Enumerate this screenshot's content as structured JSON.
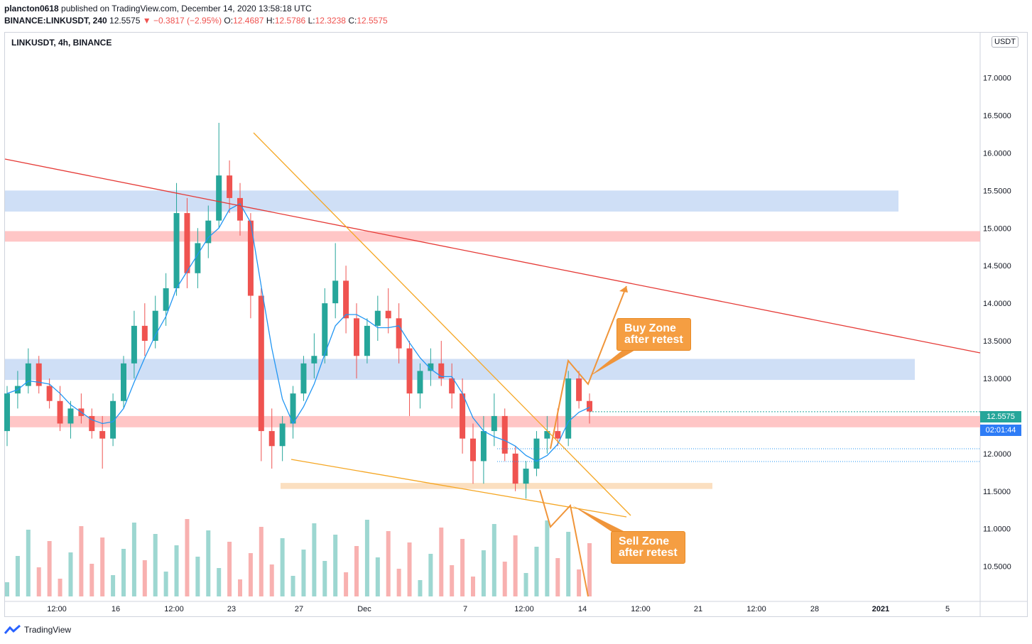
{
  "header": {
    "author": "plancton0618",
    "published": "published on TradingView.com, December 14, 2020 13:58:18 UTC",
    "symbol_full": "BINANCE:LINKUSDT, 240",
    "last": "12.5575",
    "change": "−0.3817 (−2.95%)",
    "o_label": "O:",
    "o_val": "12.4687",
    "h_label": "H:",
    "h_val": "12.5786",
    "l_label": "L:",
    "l_val": "12.3238",
    "c_label": "C:",
    "c_val": "12.5575"
  },
  "symbol_label": "LINKUSDT, 4h, BINANCE",
  "unit": "USDT",
  "price_tag": {
    "price": "12.5575",
    "countdown": "02:01:44"
  },
  "callouts": {
    "buy": [
      "Buy Zone",
      "after retest"
    ],
    "sell": [
      "Sell Zone",
      "after retest"
    ]
  },
  "footer": {
    "brand": "TradingView"
  },
  "colors": {
    "up": "#26a69a",
    "down": "#ef5350",
    "ma": "#2196f3",
    "blue_zone": "#c7d9f5",
    "red_zone": "#ffbcbc",
    "orange_zone": "#fad9b5",
    "trend_red": "#e53935",
    "trend_orange": "#f5a623",
    "arrow": "#f0953a"
  },
  "chart_data": {
    "type": "candlestick",
    "title": "LINKUSDT, 4h, BINANCE",
    "ylim": [
      10.1,
      17.6
    ],
    "y_ticks": [
      "10.5000",
      "11.0000",
      "11.5000",
      "12.0000",
      "12.5000",
      "13.0000",
      "13.5000",
      "14.0000",
      "14.5000",
      "15.0000",
      "15.5000",
      "16.0000",
      "16.5000",
      "17.0000"
    ],
    "x_ticks": [
      "12:00",
      "16",
      "12:00",
      "23",
      "27",
      "Dec",
      "7",
      "12:00",
      "14",
      "12:00",
      "21",
      "12:00",
      "28",
      "2021",
      "5"
    ],
    "zones": [
      {
        "color": "blue",
        "from": 15.22,
        "to": 15.5
      },
      {
        "color": "red",
        "from": 14.82,
        "to": 14.96
      },
      {
        "color": "blue",
        "from": 12.98,
        "to": 13.26
      },
      {
        "color": "red",
        "from": 12.35,
        "to": 12.5
      },
      {
        "color": "orange",
        "from": 11.53,
        "to": 11.61
      }
    ],
    "candles_approx": [
      [
        12.3,
        12.9,
        12.1,
        12.8
      ],
      [
        12.8,
        13.1,
        12.6,
        12.9
      ],
      [
        12.9,
        13.4,
        12.8,
        13.2
      ],
      [
        13.2,
        13.3,
        12.8,
        12.9
      ],
      [
        12.9,
        13.0,
        12.6,
        12.7
      ],
      [
        12.7,
        12.9,
        12.3,
        12.4
      ],
      [
        12.4,
        12.7,
        12.2,
        12.6
      ],
      [
        12.6,
        12.8,
        12.4,
        12.5
      ],
      [
        12.5,
        12.6,
        12.2,
        12.3
      ],
      [
        12.3,
        12.5,
        11.8,
        12.2
      ],
      [
        12.2,
        12.8,
        12.1,
        12.7
      ],
      [
        12.7,
        13.3,
        12.6,
        13.2
      ],
      [
        13.2,
        13.9,
        13.0,
        13.7
      ],
      [
        13.7,
        14.0,
        13.3,
        13.5
      ],
      [
        13.5,
        14.1,
        13.4,
        13.9
      ],
      [
        13.9,
        14.4,
        13.7,
        14.2
      ],
      [
        14.2,
        15.6,
        14.1,
        15.2
      ],
      [
        15.2,
        15.4,
        14.2,
        14.4
      ],
      [
        14.4,
        15.0,
        14.2,
        14.8
      ],
      [
        14.8,
        15.3,
        14.6,
        15.1
      ],
      [
        15.1,
        16.4,
        15.0,
        15.7
      ],
      [
        15.7,
        15.9,
        15.2,
        15.4
      ],
      [
        15.4,
        15.6,
        14.9,
        15.1
      ],
      [
        15.1,
        15.2,
        13.8,
        14.1
      ],
      [
        14.1,
        14.2,
        11.9,
        12.3
      ],
      [
        12.3,
        12.6,
        11.8,
        12.1
      ],
      [
        12.1,
        12.5,
        11.9,
        12.4
      ],
      [
        12.4,
        12.9,
        12.2,
        12.8
      ],
      [
        12.8,
        13.3,
        12.7,
        13.2
      ],
      [
        13.2,
        13.6,
        13.0,
        13.3
      ],
      [
        13.3,
        14.2,
        13.2,
        14.0
      ],
      [
        14.0,
        14.8,
        13.8,
        14.3
      ],
      [
        14.3,
        14.5,
        13.6,
        13.8
      ],
      [
        13.8,
        14.0,
        13.0,
        13.3
      ],
      [
        13.3,
        13.8,
        13.2,
        13.7
      ],
      [
        13.7,
        14.1,
        13.5,
        13.9
      ],
      [
        13.9,
        14.2,
        13.6,
        13.8
      ],
      [
        13.8,
        14.0,
        13.2,
        13.4
      ],
      [
        13.4,
        13.5,
        12.5,
        12.8
      ],
      [
        12.8,
        13.2,
        12.6,
        13.1
      ],
      [
        13.1,
        13.4,
        12.9,
        13.2
      ],
      [
        13.2,
        13.5,
        12.9,
        13.0
      ],
      [
        13.0,
        13.2,
        12.6,
        12.8
      ],
      [
        12.8,
        13.0,
        12.0,
        12.2
      ],
      [
        12.2,
        12.4,
        11.6,
        11.9
      ],
      [
        11.9,
        12.5,
        11.6,
        12.3
      ],
      [
        12.3,
        12.8,
        12.1,
        12.5
      ],
      [
        12.5,
        12.6,
        11.9,
        12.0
      ],
      [
        12.0,
        12.1,
        11.5,
        11.6
      ],
      [
        11.6,
        11.9,
        11.4,
        11.8
      ],
      [
        11.8,
        12.3,
        11.7,
        12.2
      ],
      [
        12.2,
        12.5,
        12.0,
        12.3
      ],
      [
        12.3,
        12.6,
        12.1,
        12.2
      ],
      [
        12.2,
        13.1,
        12.1,
        13.0
      ],
      [
        13.0,
        13.1,
        12.6,
        12.7
      ],
      [
        12.7,
        12.8,
        12.4,
        12.56
      ]
    ]
  }
}
